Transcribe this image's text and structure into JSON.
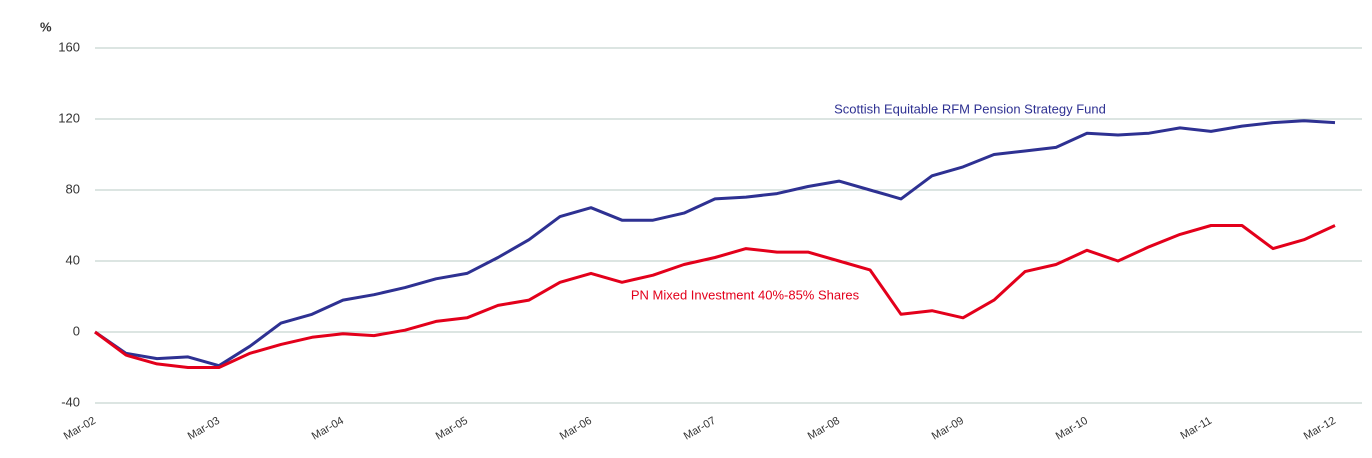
{
  "chart_data": {
    "type": "line",
    "y_label": "%",
    "categories": [
      "Mar-02",
      null,
      null,
      null,
      "Mar-03",
      null,
      null,
      null,
      "Mar-04",
      null,
      null,
      null,
      "Mar-05",
      null,
      null,
      null,
      "Mar-06",
      null,
      null,
      null,
      "Mar-07",
      null,
      null,
      null,
      "Mar-08",
      null,
      null,
      null,
      "Mar-09",
      null,
      null,
      null,
      "Mar-10",
      null,
      null,
      null,
      "Mar-11",
      null,
      null,
      null,
      "Mar-12"
    ],
    "series": [
      {
        "name": "Scottish  Equitable  RFM Pension  Strategy  Fund",
        "color": "#2e3192",
        "values": [
          0,
          -12,
          -15,
          -14,
          -19,
          -8,
          5,
          10,
          18,
          21,
          25,
          30,
          33,
          42,
          52,
          65,
          70,
          63,
          63,
          67,
          75,
          76,
          78,
          82,
          85,
          80,
          75,
          88,
          93,
          100,
          102,
          104,
          112,
          111,
          112,
          115,
          113,
          116,
          118,
          119,
          118
        ]
      },
      {
        "name": "PN Mixed Investment  40%-85% Shares",
        "color": "#e3001b",
        "values": [
          0,
          -13,
          -18,
          -20,
          -20,
          -12,
          -7,
          -3,
          -1,
          -2,
          1,
          6,
          8,
          15,
          18,
          28,
          33,
          28,
          32,
          38,
          42,
          47,
          45,
          45,
          40,
          35,
          10,
          12,
          8,
          18,
          34,
          38,
          46,
          40,
          48,
          55,
          60,
          60,
          47,
          52,
          60
        ]
      }
    ],
    "ylim": [
      -40,
      160
    ],
    "yticks": [
      -40,
      0,
      40,
      80,
      120,
      160
    ],
    "grid": true
  }
}
